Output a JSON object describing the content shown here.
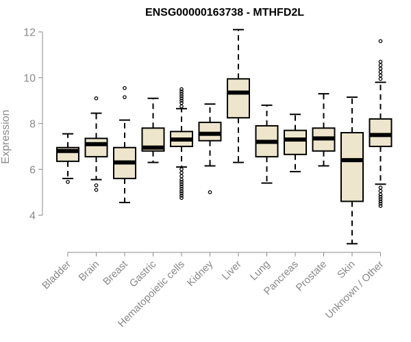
{
  "chart_data": {
    "type": "boxplot",
    "title": "ENSG00000163738 - MTHFD2L",
    "xlabel": "",
    "ylabel": "Expression",
    "ylim": [
      2.7,
      12.2
    ],
    "yticks": [
      4,
      6,
      8,
      10,
      12
    ],
    "box_color": "#ede6cc",
    "categories": [
      "Bladder",
      "Brain",
      "Breast",
      "Gastric",
      "Hematopoietic cells",
      "Kidney",
      "Liver",
      "Lung",
      "Pancreas",
      "Prostate",
      "Skin",
      "Unknown / Other"
    ],
    "boxes": [
      {
        "category": "Bladder",
        "whisker_low": 5.6,
        "q1": 6.35,
        "median": 6.8,
        "q3": 6.95,
        "whisker_high": 7.55,
        "outliers": [
          5.45
        ]
      },
      {
        "category": "Brain",
        "whisker_low": 5.55,
        "q1": 6.55,
        "median": 7.1,
        "q3": 7.35,
        "whisker_high": 8.45,
        "outliers": [
          5.3,
          5.1,
          9.1
        ]
      },
      {
        "category": "Breast",
        "whisker_low": 4.55,
        "q1": 5.6,
        "median": 6.3,
        "q3": 6.95,
        "whisker_high": 8.15,
        "outliers": [
          9.15,
          9.55
        ]
      },
      {
        "category": "Gastric",
        "whisker_low": 6.3,
        "q1": 6.8,
        "median": 6.95,
        "q3": 7.8,
        "whisker_high": 9.1,
        "outliers": []
      },
      {
        "category": "Hematopoietic cells",
        "whisker_low": 6.1,
        "q1": 7.0,
        "median": 7.3,
        "q3": 7.65,
        "whisker_high": 8.65,
        "outliers": [
          6.0,
          5.85,
          5.7,
          5.55,
          5.45,
          5.35,
          5.25,
          5.15,
          5.05,
          4.95,
          4.85,
          4.75,
          8.75,
          8.9,
          9.0,
          9.1,
          9.2,
          9.3,
          9.4,
          9.5
        ]
      },
      {
        "category": "Kidney",
        "whisker_low": 6.15,
        "q1": 7.25,
        "median": 7.55,
        "q3": 8.05,
        "whisker_high": 8.85,
        "outliers": [
          5.0
        ]
      },
      {
        "category": "Liver",
        "whisker_low": 6.3,
        "q1": 8.25,
        "median": 9.35,
        "q3": 9.95,
        "whisker_high": 12.1,
        "outliers": []
      },
      {
        "category": "Lung",
        "whisker_low": 5.4,
        "q1": 6.55,
        "median": 7.2,
        "q3": 7.9,
        "whisker_high": 8.8,
        "outliers": []
      },
      {
        "category": "Pancreas",
        "whisker_low": 5.9,
        "q1": 6.65,
        "median": 7.3,
        "q3": 7.7,
        "whisker_high": 8.4,
        "outliers": []
      },
      {
        "category": "Prostate",
        "whisker_low": 6.15,
        "q1": 6.8,
        "median": 7.35,
        "q3": 7.8,
        "whisker_high": 9.3,
        "outliers": []
      },
      {
        "category": "Skin",
        "whisker_low": 2.75,
        "q1": 4.6,
        "median": 6.4,
        "q3": 7.6,
        "whisker_high": 9.15,
        "outliers": []
      },
      {
        "category": "Unknown / Other",
        "whisker_low": 5.35,
        "q1": 7.0,
        "median": 7.5,
        "q3": 8.2,
        "whisker_high": 9.8,
        "outliers": [
          5.2,
          5.05,
          4.9,
          4.8,
          4.7,
          4.6,
          4.5,
          4.4,
          9.95,
          10.1,
          10.25,
          10.4,
          10.55,
          10.7,
          11.6
        ]
      }
    ]
  }
}
